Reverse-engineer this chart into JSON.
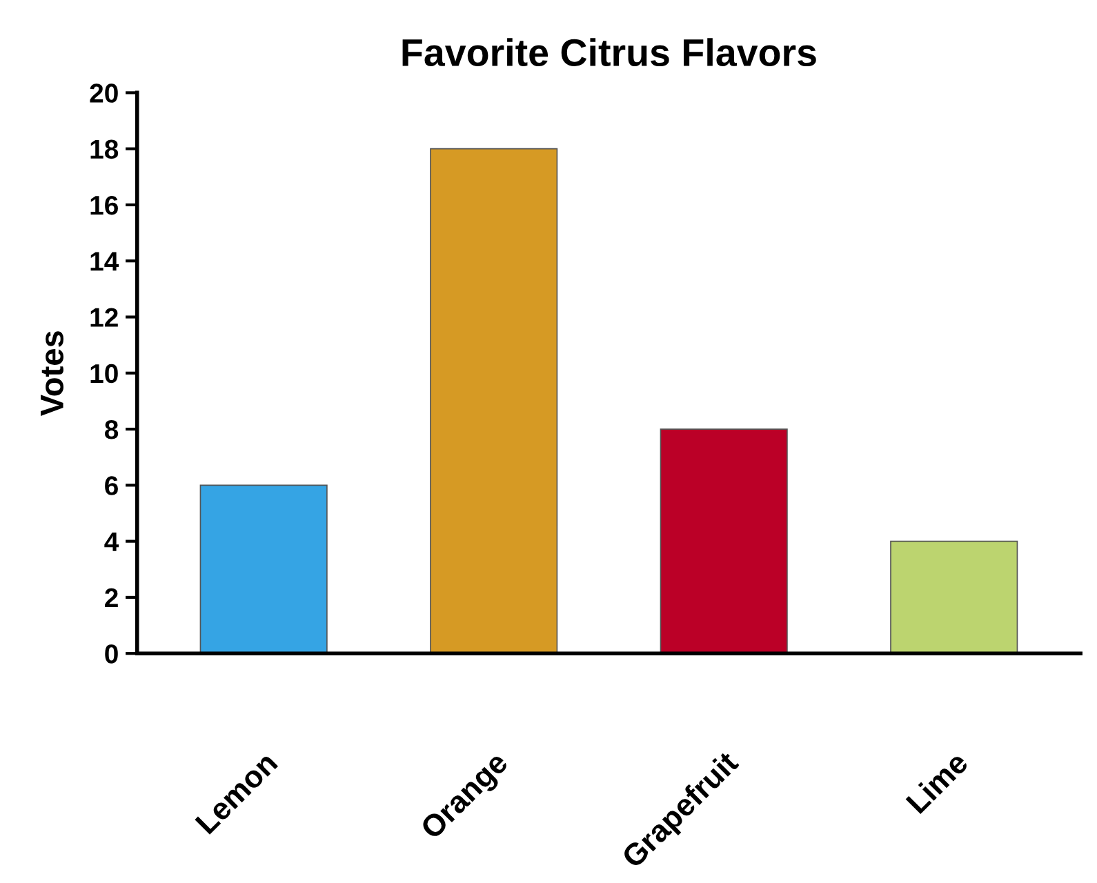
{
  "chart_data": {
    "type": "bar",
    "title": "Favorite Citrus Flavors",
    "ylabel": "Votes",
    "categories": [
      "Lemon",
      "Orange",
      "Grapefruit",
      "Lime"
    ],
    "values": [
      6,
      18,
      8,
      4
    ],
    "colors": [
      "#35a4e4",
      "#d69a24",
      "#bb0027",
      "#bcd46f"
    ],
    "ylim": [
      0,
      20
    ],
    "yticks": [
      0,
      2,
      4,
      6,
      8,
      10,
      12,
      14,
      16,
      18,
      20
    ],
    "grid": false,
    "legend": false
  }
}
